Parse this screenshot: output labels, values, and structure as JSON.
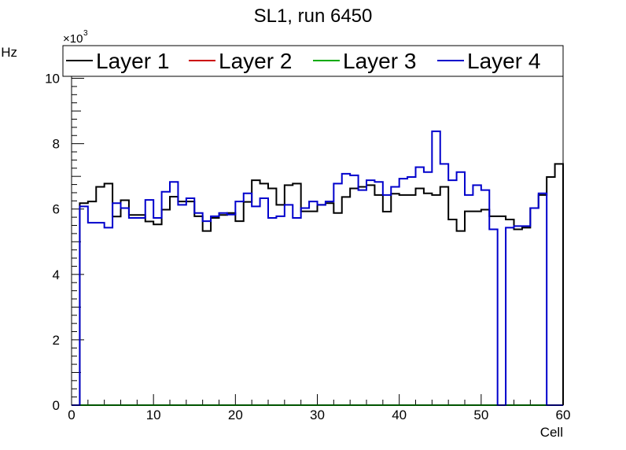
{
  "chart_data": {
    "type": "line",
    "title": "SL1, run 6450",
    "xlabel": "Cell",
    "ylabel": "Hz",
    "y_multiplier_base": "×10",
    "y_multiplier_exp": "3",
    "xlim": [
      0,
      60
    ],
    "ylim": [
      0,
      11
    ],
    "x_ticks": [
      0,
      10,
      20,
      30,
      40,
      50,
      60
    ],
    "y_ticks": [
      0,
      2,
      4,
      6,
      8,
      10
    ],
    "grid": false,
    "legend_position": "top",
    "bin_width": 1,
    "series": [
      {
        "name": "Layer 1",
        "color": "#000000",
        "values": [
          0,
          6.18,
          6.23,
          6.68,
          6.78,
          5.77,
          6.27,
          5.82,
          5.82,
          5.62,
          5.53,
          5.98,
          6.38,
          6.23,
          6.23,
          5.78,
          5.33,
          5.73,
          5.82,
          5.88,
          5.63,
          6.22,
          6.88,
          6.78,
          6.63,
          6.13,
          6.73,
          6.78,
          5.93,
          5.93,
          6.13,
          6.18,
          5.88,
          6.37,
          6.63,
          6.68,
          6.73,
          6.43,
          5.92,
          6.47,
          6.43,
          6.43,
          6.63,
          6.48,
          6.43,
          6.68,
          5.68,
          5.33,
          5.93,
          5.93,
          5.98,
          5.78,
          5.78,
          5.68,
          5.38,
          5.43,
          6.03,
          6.43,
          6.98,
          7.38
        ]
      },
      {
        "name": "Layer 2",
        "color": "#cc0000",
        "values": [
          0,
          0,
          0,
          0,
          0,
          0,
          0,
          0,
          0,
          0,
          0,
          0,
          0,
          0,
          0,
          0,
          0,
          0,
          0,
          0,
          0,
          0,
          0,
          0,
          0,
          0,
          0,
          0,
          0,
          0,
          0,
          0,
          0,
          0,
          0,
          0,
          0,
          0,
          0,
          0,
          0,
          0,
          0,
          0,
          0,
          0,
          0,
          0,
          0,
          0,
          0,
          0,
          0,
          0,
          0,
          0,
          0,
          0,
          0,
          0
        ]
      },
      {
        "name": "Layer 3",
        "color": "#00aa00",
        "values": [
          0,
          0,
          0,
          0,
          0,
          0,
          0,
          0,
          0,
          0,
          0,
          0,
          0,
          0,
          0,
          0,
          0,
          0,
          0,
          0,
          0,
          0,
          0,
          0,
          0,
          0,
          0,
          0,
          0,
          0,
          0,
          0,
          0,
          0,
          0,
          0,
          0,
          0,
          0,
          0,
          0,
          0,
          0,
          0,
          0,
          0,
          0,
          0,
          0,
          0,
          0,
          0,
          0,
          0,
          0,
          0,
          0,
          0,
          0,
          0
        ]
      },
      {
        "name": "Layer 4",
        "color": "#0000cc",
        "values": [
          0,
          6.08,
          5.58,
          5.58,
          5.43,
          6.18,
          6.03,
          5.73,
          5.73,
          6.28,
          5.73,
          6.53,
          6.83,
          6.13,
          6.33,
          5.88,
          5.63,
          5.78,
          5.88,
          5.83,
          6.23,
          6.48,
          6.08,
          6.33,
          5.73,
          5.78,
          6.13,
          5.73,
          6.03,
          6.23,
          6.13,
          6.23,
          6.78,
          7.08,
          7.03,
          6.58,
          6.88,
          6.83,
          6.43,
          6.68,
          6.93,
          6.98,
          7.28,
          7.13,
          8.38,
          7.38,
          6.88,
          7.13,
          6.43,
          6.73,
          6.58,
          5.38,
          0,
          5.43,
          5.48,
          5.48,
          6.03,
          6.48,
          0,
          0
        ]
      }
    ]
  }
}
